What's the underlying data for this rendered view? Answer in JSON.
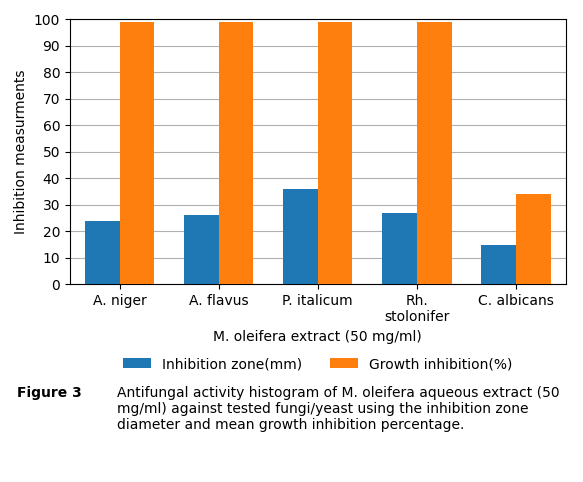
{
  "chart_data": {
    "type": "bar",
    "categories": [
      "A. niger",
      "A. flavus",
      "P. italicum",
      "Rh.\nstolonifer",
      "C. albicans"
    ],
    "series": [
      {
        "name": "Inhibition zone(mm)",
        "values": [
          24,
          26,
          36,
          27,
          15
        ]
      },
      {
        "name": "Growth inhibition(%)",
        "values": [
          99,
          99,
          99,
          99,
          34
        ]
      }
    ],
    "ylabel": "Inhibition measurments",
    "xlabel": "M. oleifera extract (50 mg/ml)",
    "ylim": [
      0,
      100
    ],
    "yticks": [
      0,
      10,
      20,
      30,
      40,
      50,
      60,
      70,
      80,
      90,
      100
    ],
    "grid": true,
    "legend": "upper center",
    "annotations": [
      "Figure 3",
      "Antifungal activity histogram of M. oleifera aqueous extract (50 mg/ml) against tested fungi/yeast using the inhibition zone diameter and mean growth inhibition percentage."
    ]
  }
}
